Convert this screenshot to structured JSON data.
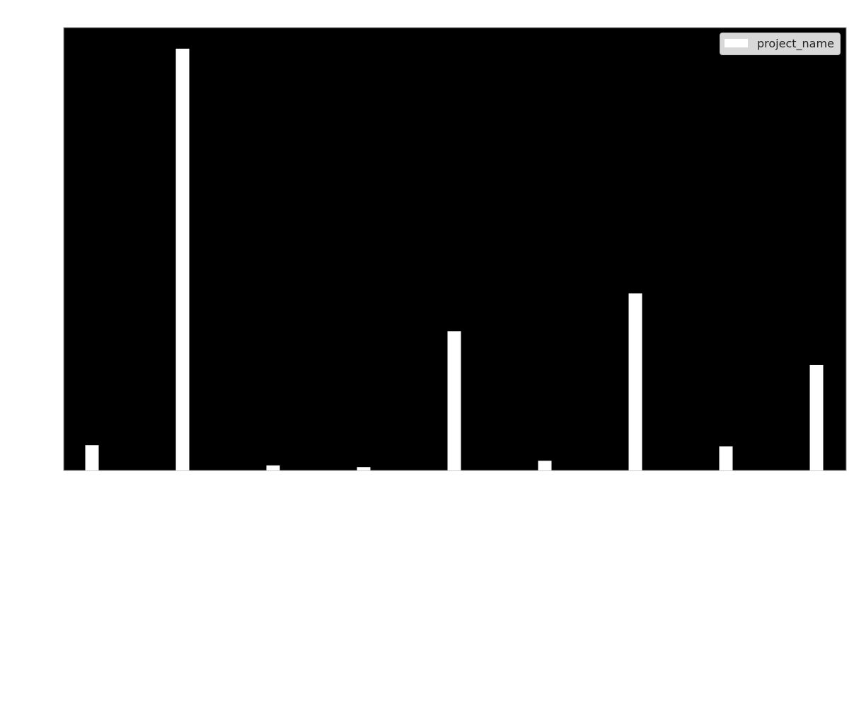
{
  "chart_data": {
    "type": "bar",
    "background": "#000000",
    "bar_color": "#ffffff",
    "grid": false,
    "legend": {
      "placement": "top-right",
      "entries": [
        "project_name"
      ]
    },
    "categories": [
      "",
      "",
      "",
      "",
      "",
      "",
      "",
      "",
      ""
    ],
    "series": [
      {
        "name": "project_name",
        "values": [
          6,
          100,
          1.2,
          0.8,
          33,
          2.3,
          42,
          5.7,
          25
        ]
      }
    ],
    "ylim": [
      0,
      105
    ],
    "title": "",
    "xlabel": "",
    "ylabel": ""
  }
}
